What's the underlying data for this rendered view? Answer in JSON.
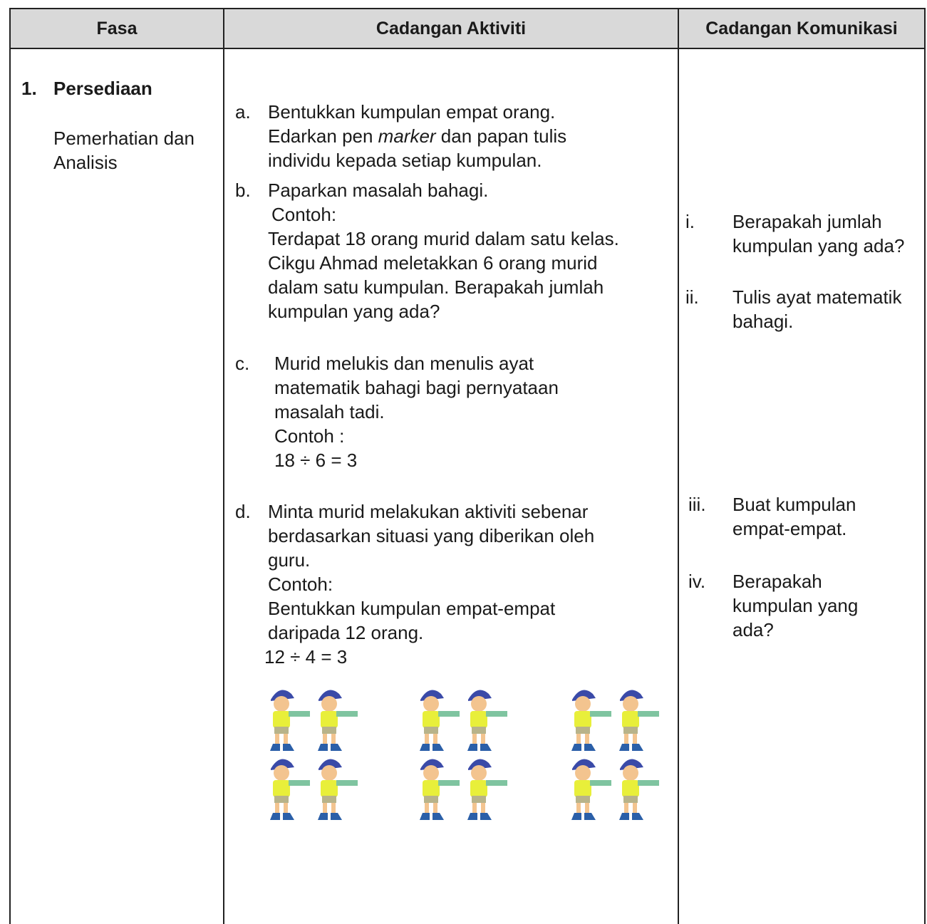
{
  "header": [
    "Fasa",
    "Cadangan Aktiviti",
    "Cadangan Komunikasi"
  ],
  "phase": {
    "number": "1.",
    "title": "Persediaan",
    "subtitle": [
      "Pemerhatian dan",
      "Analisis"
    ]
  },
  "activities": [
    {
      "marker": "a.",
      "lines": [
        "Bentukkan kumpulan empat orang.",
        {
          "before": "Edarkan pen ",
          "italic": "marker",
          "after": " dan papan tulis"
        },
        "individu kepada setiap kumpulan."
      ]
    },
    {
      "marker": "b.",
      "lines": [
        "Paparkan masalah bahagi.",
        "Contoh:",
        "Terdapat 18 orang murid dalam satu kelas.",
        "Cikgu Ahmad meletakkan 6 orang murid",
        "dalam satu kumpulan. Berapakah jumlah",
        "kumpulan yang ada?"
      ]
    },
    {
      "marker": "c.",
      "lines": [
        "Murid melukis dan menulis ayat",
        "matematik bahagi bagi pernyataan",
        "masalah tadi.",
        "Contoh :",
        "18 ÷ 6 = 3"
      ]
    },
    {
      "marker": "d.",
      "lines": [
        "Minta murid melakukan aktiviti sebenar",
        "berdasarkan situasi yang diberikan oleh",
        "guru.",
        "Contoh:",
        "Bentukkan kumpulan empat-empat",
        "daripada 12 orang.",
        "12 ÷ 4 = 3"
      ]
    }
  ],
  "communications": [
    {
      "marker": "i.",
      "lines": [
        "Berapakah jumlah",
        "kumpulan yang ada?"
      ]
    },
    {
      "marker": "ii.",
      "lines": [
        "Tulis ayat matematik",
        "bahagi."
      ]
    },
    {
      "marker": "iii.",
      "lines": [
        "Buat kumpulan",
        "empat-empat."
      ]
    },
    {
      "marker": "iv.",
      "lines": [
        "Berapakah",
        "kumpulan yang",
        "ada?"
      ]
    }
  ]
}
